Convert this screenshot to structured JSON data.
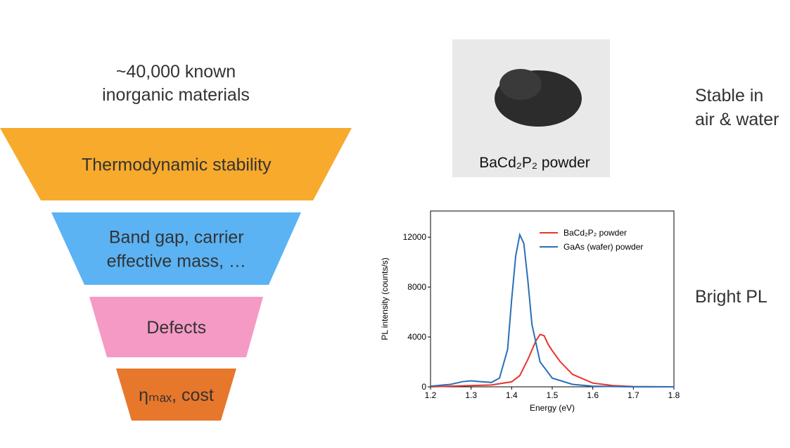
{
  "intro": {
    "lines": [
      "~40,000 known",
      "inorganic materials"
    ]
  },
  "funnel": [
    {
      "label": [
        "Thermodynamic stability"
      ],
      "color": "#f7aa2c"
    },
    {
      "label": [
        "Band gap, carrier",
        "effective mass, …"
      ],
      "color": "#5bb3f4"
    },
    {
      "label": [
        "Defects"
      ],
      "color": "#f59ac5"
    },
    {
      "label": [
        "ηₘₐₓ, cost"
      ],
      "color": "#e7772b"
    }
  ],
  "photo": {
    "caption": "BaCd₂P₂ powder"
  },
  "side_notes": [
    {
      "lines": [
        "Stable in",
        "air & water"
      ]
    },
    {
      "lines": [
        "Bright PL"
      ]
    }
  ],
  "chart_data": {
    "type": "line",
    "x_label": "Energy (eV)",
    "y_label": "PL intensity (counts/s)",
    "xlim": [
      1.2,
      1.8
    ],
    "ylim": [
      0,
      14100
    ],
    "xticks": [
      1.2,
      1.3,
      1.4,
      1.5,
      1.6,
      1.7,
      1.8
    ],
    "yticks": [
      0,
      4000,
      8000,
      12000
    ],
    "legend": "upper right",
    "series": [
      {
        "name": "BaCd₂P₂ powder",
        "color": "#e8342b",
        "x": [
          1.2,
          1.3,
          1.35,
          1.4,
          1.42,
          1.44,
          1.46,
          1.47,
          1.48,
          1.49,
          1.5,
          1.52,
          1.55,
          1.6,
          1.65,
          1.7,
          1.8
        ],
        "values": [
          0,
          100,
          150,
          400,
          900,
          2200,
          3700,
          4200,
          4100,
          3400,
          2900,
          2000,
          1000,
          300,
          100,
          20,
          0
        ]
      },
      {
        "name": "GaAs (wafer) powder",
        "color": "#2a6fb8",
        "x": [
          1.2,
          1.25,
          1.28,
          1.3,
          1.32,
          1.35,
          1.37,
          1.39,
          1.4,
          1.41,
          1.42,
          1.43,
          1.44,
          1.45,
          1.47,
          1.5,
          1.55,
          1.6,
          1.7,
          1.8
        ],
        "values": [
          50,
          200,
          420,
          480,
          420,
          350,
          700,
          3000,
          7000,
          10500,
          12200,
          11500,
          8500,
          5000,
          2000,
          700,
          200,
          50,
          0,
          0
        ]
      }
    ]
  }
}
